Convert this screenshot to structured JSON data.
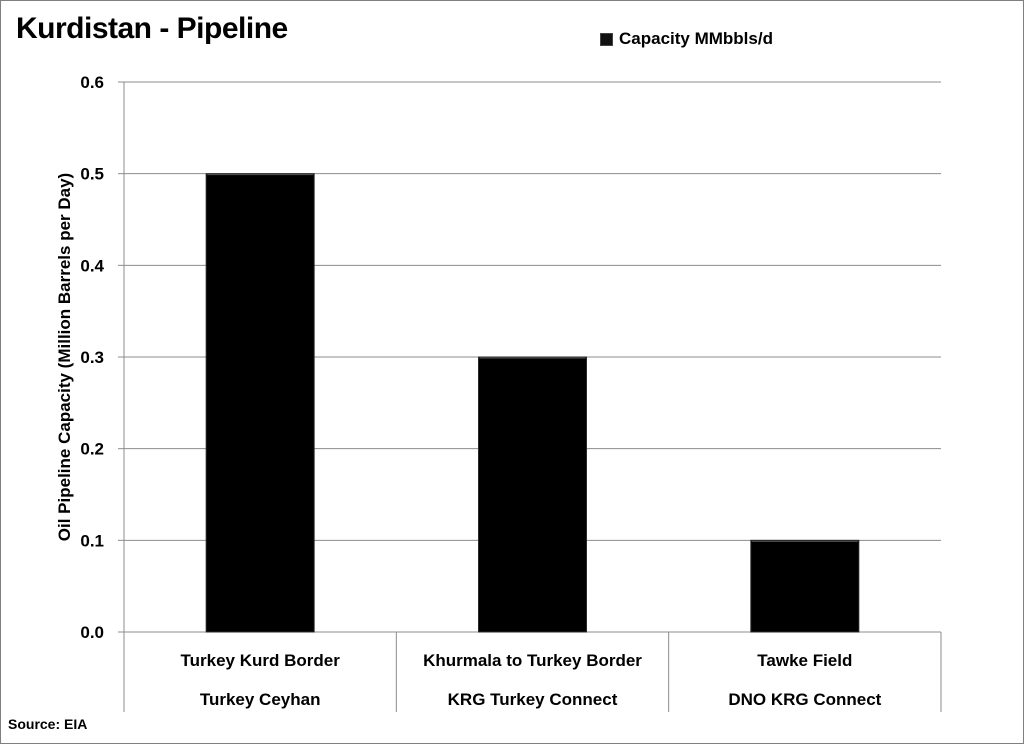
{
  "chart_data": {
    "type": "bar",
    "title": "Kurdistan - Pipeline",
    "legend": "Capacity MMbbls/d",
    "legend_position": "top-right",
    "ylabel": "Oil Pipeline Capacity (Million Barrels per Day)",
    "xlabel": "",
    "ylim": [
      0,
      0.6
    ],
    "yticks": [
      "0.0",
      "0.1",
      "0.2",
      "0.3",
      "0.4",
      "0.5",
      "0.6"
    ],
    "grid": true,
    "categories": [
      {
        "line1": "Turkey Kurd Border",
        "line2": "Turkey Ceyhan"
      },
      {
        "line1": "Khurmala to Turkey Border",
        "line2": "KRG Turkey Connect"
      },
      {
        "line1": "Tawke Field",
        "line2": "DNO KRG Connect"
      }
    ],
    "series": [
      {
        "name": "Capacity MMbbls/d",
        "values": [
          0.5,
          0.3,
          0.1
        ],
        "color": "#000000"
      }
    ]
  },
  "source": "Source: EIA"
}
